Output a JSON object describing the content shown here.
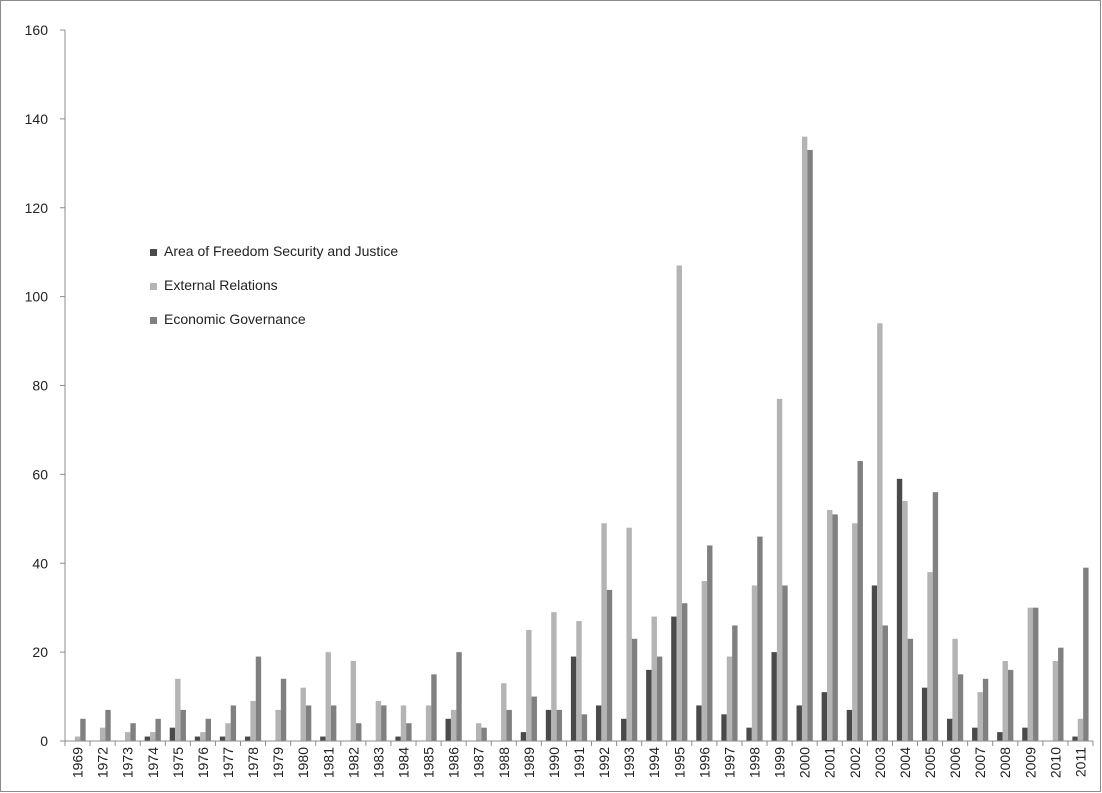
{
  "chart_data": {
    "type": "bar",
    "title": "",
    "xlabel": "",
    "ylabel": "",
    "ylim": [
      0,
      160
    ],
    "yticks": [
      0,
      20,
      40,
      60,
      80,
      100,
      120,
      140,
      160
    ],
    "grid": false,
    "legend_position": "upper-left",
    "categories": [
      "1969",
      "1972",
      "1973",
      "1974",
      "1975",
      "1976",
      "1977",
      "1978",
      "1979",
      "1980",
      "1981",
      "1982",
      "1983",
      "1984",
      "1985",
      "1986",
      "1987",
      "1988",
      "1989",
      "1990",
      "1991",
      "1992",
      "1993",
      "1994",
      "1995",
      "1996",
      "1997",
      "1998",
      "1999",
      "2000",
      "2001",
      "2002",
      "2003",
      "2004",
      "2005",
      "2006",
      "2007",
      "2008",
      "2009",
      "2010",
      "2011"
    ],
    "series": [
      {
        "name": "Area of Freedom Security and Justice",
        "color": "#4a4a4a",
        "values": [
          0,
          0,
          0,
          1,
          3,
          1,
          1,
          1,
          0,
          0,
          1,
          0,
          0,
          1,
          0,
          5,
          0,
          0,
          2,
          7,
          19,
          8,
          5,
          16,
          28,
          8,
          6,
          3,
          20,
          8,
          11,
          7,
          35,
          59,
          12,
          5,
          3,
          2,
          3,
          0,
          1
        ]
      },
      {
        "name": "External Relations",
        "color": "#b4b4b4",
        "values": [
          1,
          3,
          2,
          2,
          14,
          2,
          4,
          9,
          7,
          12,
          20,
          18,
          9,
          8,
          8,
          7,
          4,
          13,
          25,
          29,
          27,
          49,
          48,
          28,
          107,
          36,
          19,
          35,
          77,
          136,
          52,
          49,
          94,
          54,
          38,
          23,
          11,
          18,
          30,
          18,
          5
        ]
      },
      {
        "name": "Economic Governance",
        "color": "#808080",
        "values": [
          5,
          7,
          4,
          5,
          7,
          5,
          8,
          19,
          14,
          8,
          8,
          4,
          8,
          4,
          15,
          20,
          3,
          7,
          10,
          7,
          6,
          34,
          23,
          19,
          31,
          44,
          26,
          46,
          35,
          133,
          51,
          63,
          26,
          23,
          56,
          15,
          14,
          16,
          30,
          21,
          39
        ]
      }
    ]
  }
}
